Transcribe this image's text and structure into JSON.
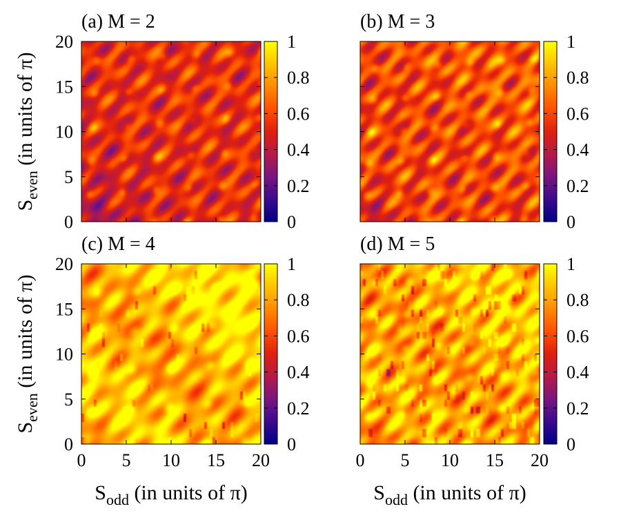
{
  "chart_data": [
    {
      "type": "heatmap",
      "title": "(a) M = 2",
      "xlabel": "",
      "ylabel": "S",
      "ylabel_sub": "even",
      "ylabel_tail": " (in units of π)",
      "xlim": [
        0,
        20
      ],
      "ylim": [
        0,
        20
      ],
      "xticks": [],
      "yticks": [
        "0",
        "5",
        "10",
        "15",
        "20"
      ],
      "colorbar_ticks": [
        "0",
        "0.2",
        "0.4",
        "0.6",
        "0.8",
        "1"
      ],
      "clim": [
        0,
        1
      ],
      "params": {
        "base": 0.26,
        "amp": 0.55,
        "freq": 1.0,
        "brightness": 0.0,
        "glitch": 0.0,
        "seed": 1
      }
    },
    {
      "type": "heatmap",
      "title": "(b) M = 3",
      "xlabel": "",
      "ylabel": "",
      "xlim": [
        0,
        20
      ],
      "ylim": [
        0,
        20
      ],
      "xticks": [],
      "yticks": [],
      "colorbar_ticks": [
        "0",
        "0.2",
        "0.4",
        "0.6",
        "0.8",
        "1"
      ],
      "clim": [
        0,
        1
      ],
      "params": {
        "base": 0.28,
        "amp": 0.62,
        "freq": 1.05,
        "brightness": 0.05,
        "glitch": 0.0,
        "seed": 2
      }
    },
    {
      "type": "heatmap",
      "title": "(c) M = 4",
      "xlabel": "S",
      "xlabel_sub": "odd",
      "xlabel_tail": " (in units of π)",
      "ylabel": "S",
      "ylabel_sub": "even",
      "ylabel_tail": " (in units of π)",
      "xlim": [
        0,
        20
      ],
      "ylim": [
        0,
        20
      ],
      "xticks": [
        "0",
        "5",
        "10",
        "15",
        "20"
      ],
      "yticks": [
        "0",
        "5",
        "10",
        "15",
        "20"
      ],
      "colorbar_ticks": [
        "0",
        "0.2",
        "0.4",
        "0.6",
        "0.8",
        "1"
      ],
      "clim": [
        0,
        1
      ],
      "params": {
        "base": 0.52,
        "amp": 0.55,
        "freq": 0.85,
        "brightness": 0.18,
        "glitch": 0.1,
        "seed": 3
      }
    },
    {
      "type": "heatmap",
      "title": "(d) M = 5",
      "xlabel": "S",
      "xlabel_sub": "odd",
      "xlabel_tail": " (in units of π)",
      "ylabel": "",
      "xlim": [
        0,
        20
      ],
      "ylim": [
        0,
        20
      ],
      "xticks": [
        "0",
        "5",
        "10",
        "15",
        "20"
      ],
      "yticks": [],
      "colorbar_ticks": [
        "0",
        "0.2",
        "0.4",
        "0.6",
        "0.8",
        "1"
      ],
      "clim": [
        0,
        1
      ],
      "params": {
        "base": 0.48,
        "amp": 0.6,
        "freq": 1.0,
        "brightness": 0.12,
        "glitch": 0.35,
        "seed": 4
      }
    }
  ],
  "colormap": [
    "#000088",
    "#3a0a8f",
    "#7a1580",
    "#b41a48",
    "#e0200e",
    "#ff5000",
    "#ff8a00",
    "#ffc400",
    "#ffff00"
  ]
}
